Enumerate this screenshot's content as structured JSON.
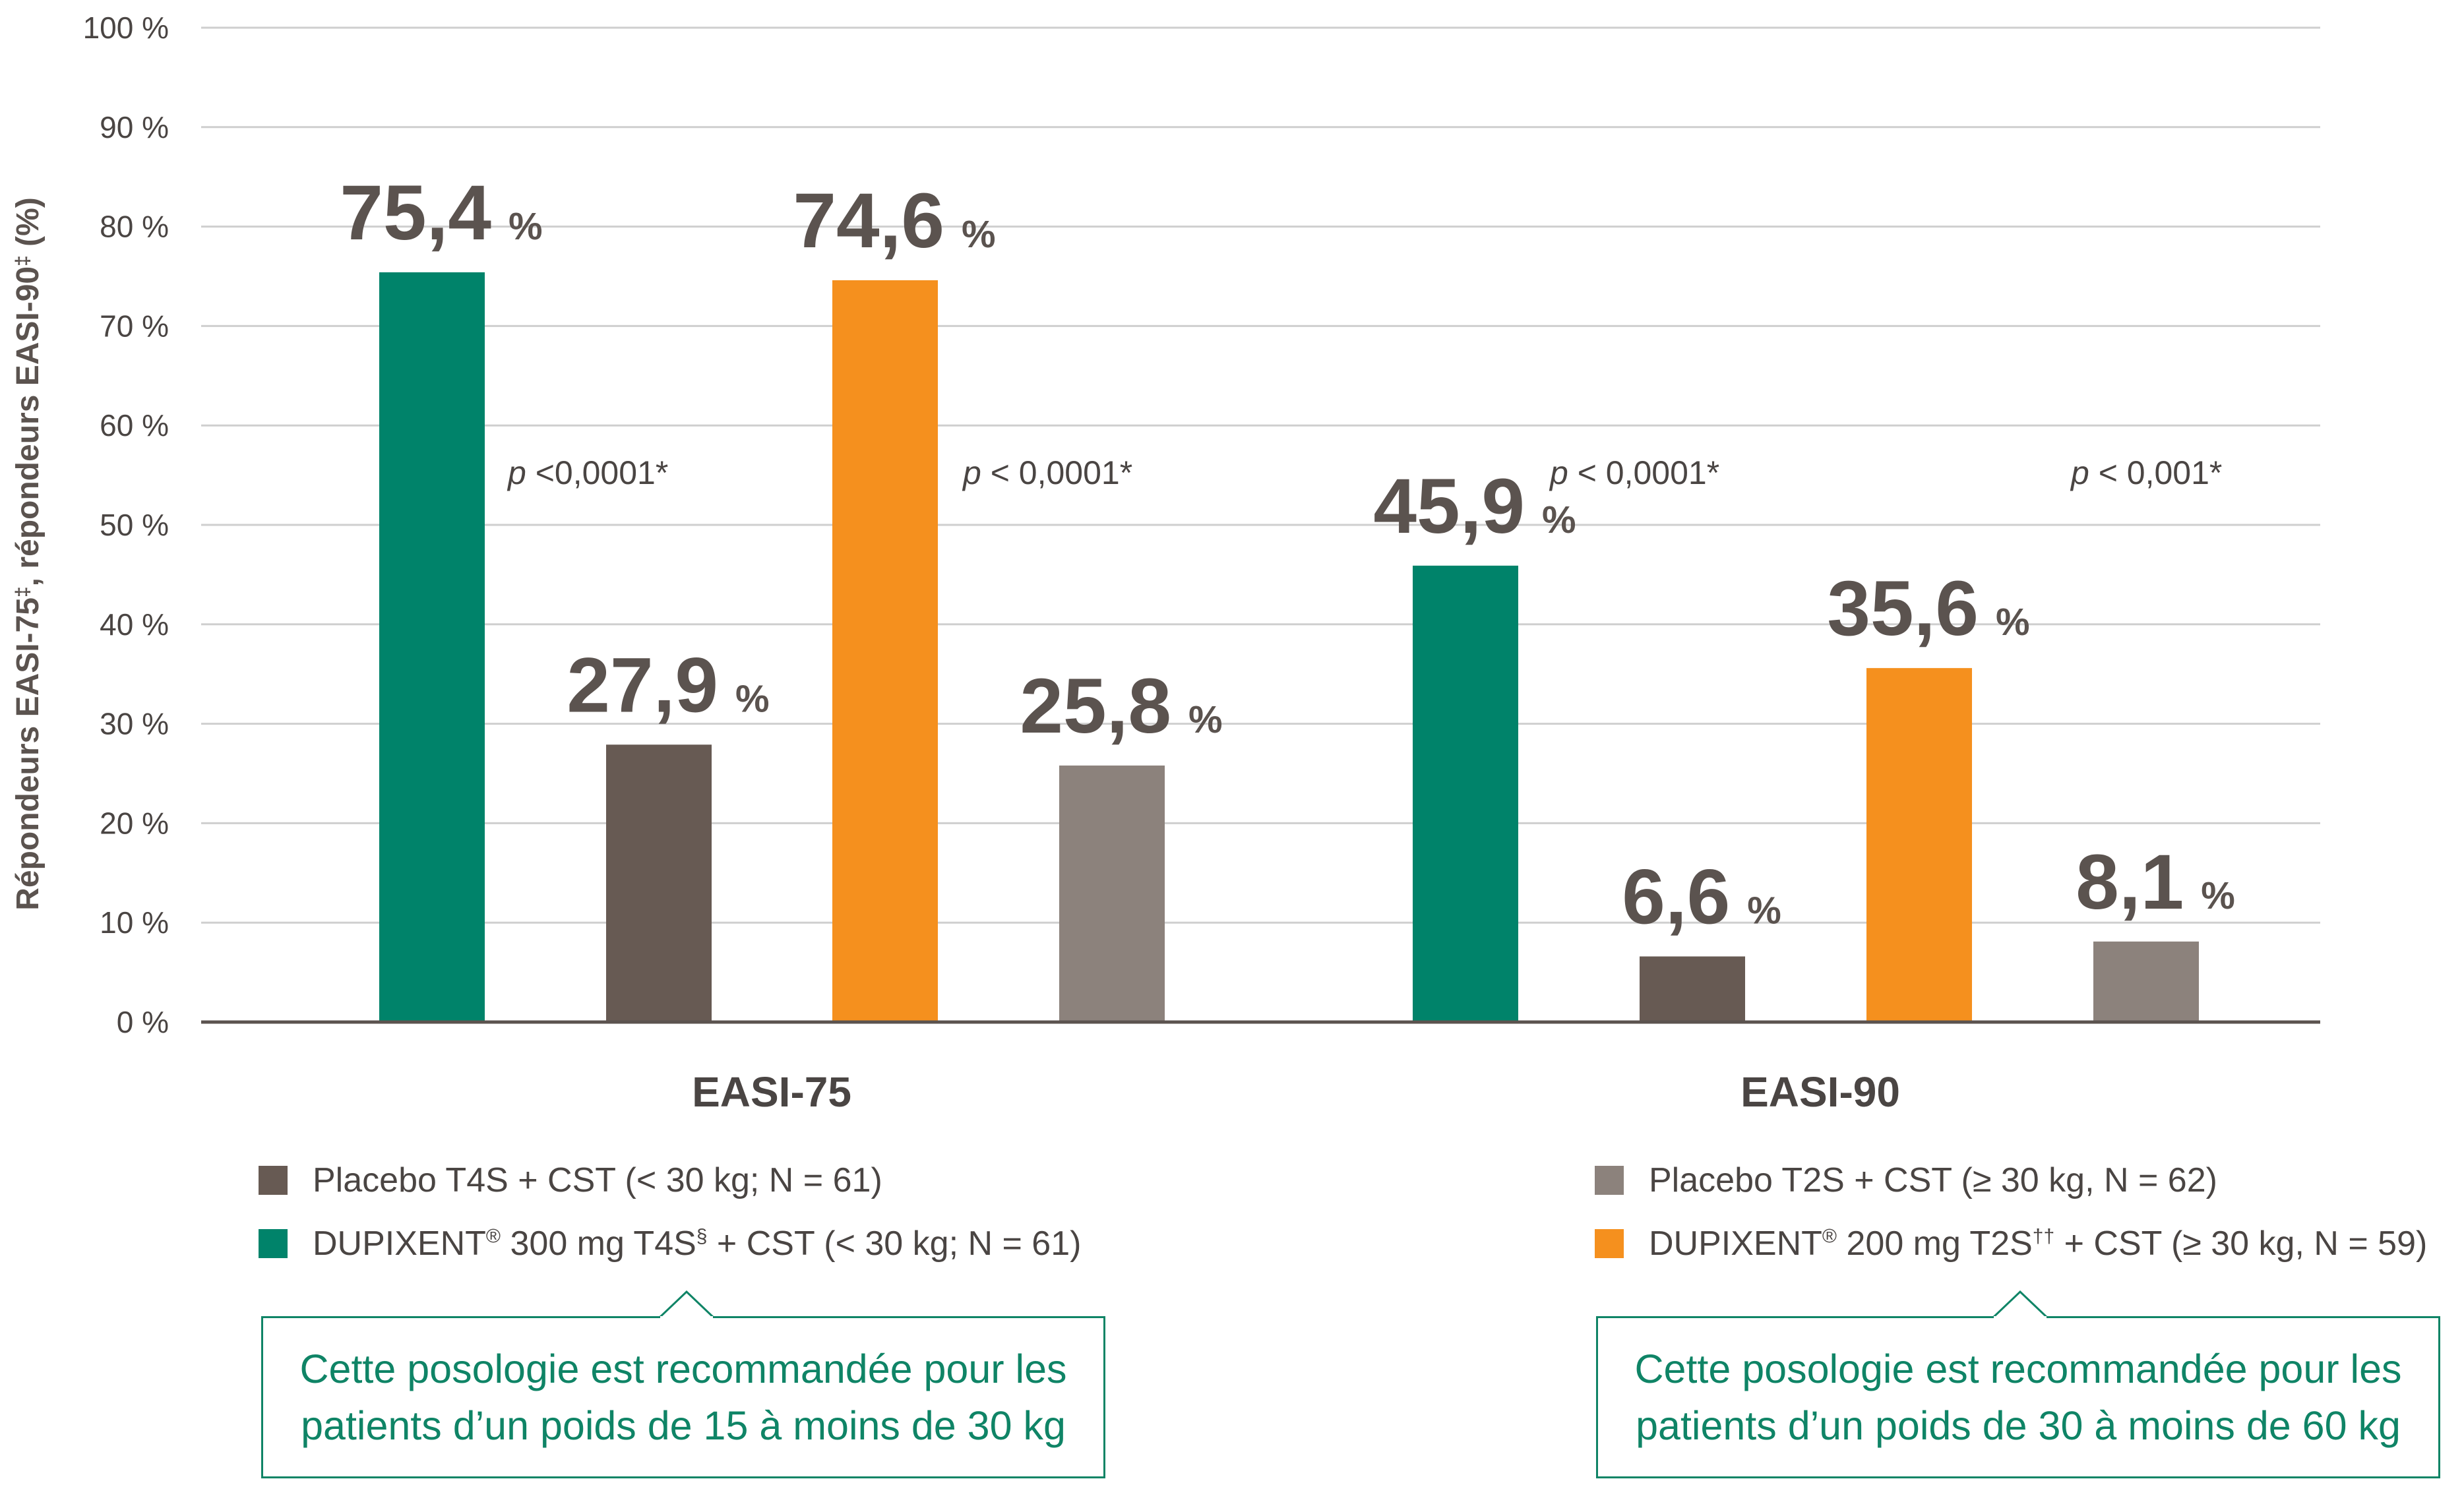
{
  "chart_data": {
    "type": "bar",
    "ylabel": "Répondeurs EASI-75‡, répondeurs EASI-90‡ (%)",
    "ylim": [
      0,
      100
    ],
    "yticks": [
      "0 %",
      "10 %",
      "20 %",
      "30 %",
      "40 %",
      "50 %",
      "60 %",
      "70 %",
      "80 %",
      "90 %",
      "100 %"
    ],
    "grid": true,
    "groups": [
      {
        "label": "EASI-75",
        "bars": [
          {
            "series": "DUPIXENT 300 mg T4S + CST (< 30 kg; N = 61)",
            "value": 75.4,
            "label": "75,4",
            "unit": "%",
            "color": "#00836a"
          },
          {
            "series": "Placebo T4S + CST (< 30 kg; N = 61)",
            "value": 27.9,
            "label": "27,9",
            "unit": "%",
            "color": "#675a53"
          },
          {
            "series": "DUPIXENT 200 mg T2S + CST (≥ 30 kg, N = 59)",
            "value": 74.6,
            "label": "74,6",
            "unit": "%",
            "color": "#f5901e"
          },
          {
            "series": "Placebo T2S + CST (≥ 30 kg, N = 62)",
            "value": 25.8,
            "label": "25,8",
            "unit": "%",
            "color": "#8c827c"
          }
        ],
        "pvalues": [
          {
            "p": "p",
            "text": " <0,0001*"
          },
          {
            "p": "p",
            "text": " < 0,0001*"
          }
        ]
      },
      {
        "label": "EASI-90",
        "bars": [
          {
            "series": "DUPIXENT 300 mg T4S + CST (< 30 kg; N = 61)",
            "value": 45.9,
            "label": "45,9",
            "unit": "%",
            "color": "#00836a"
          },
          {
            "series": "Placebo T4S + CST (< 30 kg; N = 61)",
            "value": 6.6,
            "label": "6,6",
            "unit": "%",
            "color": "#675a53"
          },
          {
            "series": "DUPIXENT 200 mg T2S + CST (≥ 30 kg, N = 59)",
            "value": 35.6,
            "label": "35,6",
            "unit": "%",
            "color": "#f5901e"
          },
          {
            "series": "Placebo T2S + CST (≥ 30 kg, N = 62)",
            "value": 8.1,
            "label": "8,1",
            "unit": "%",
            "color": "#8c827c"
          }
        ],
        "pvalues": [
          {
            "p": "p",
            "text": " < 0,0001*"
          },
          {
            "p": "p",
            "text": " < 0,001*"
          }
        ]
      }
    ]
  },
  "legend": {
    "left": [
      {
        "text": "Placebo T4S + CST (< 30 kg; N = 61)",
        "color": "#675a53"
      },
      {
        "text": "DUPIXENT® 300 mg T4S§ + CST (< 30 kg; N = 61)",
        "color": "#00836a"
      }
    ],
    "right": [
      {
        "text": "Placebo T2S + CST (≥ 30 kg, N = 62)",
        "color": "#8c827c"
      },
      {
        "text": "DUPIXENT® 200 mg T2S†† + CST (≥ 30 kg, N = 59)",
        "color": "#f5901e"
      }
    ]
  },
  "callouts": {
    "left": {
      "line1": "Cette posologie est recommandée pour les",
      "line2": "patients d’un poids de 15 à moins de 30 kg"
    },
    "right": {
      "line1": "Cette posologie est recommandée pour les",
      "line2": "patients d’un poids de 30 à moins de 60 kg"
    }
  }
}
